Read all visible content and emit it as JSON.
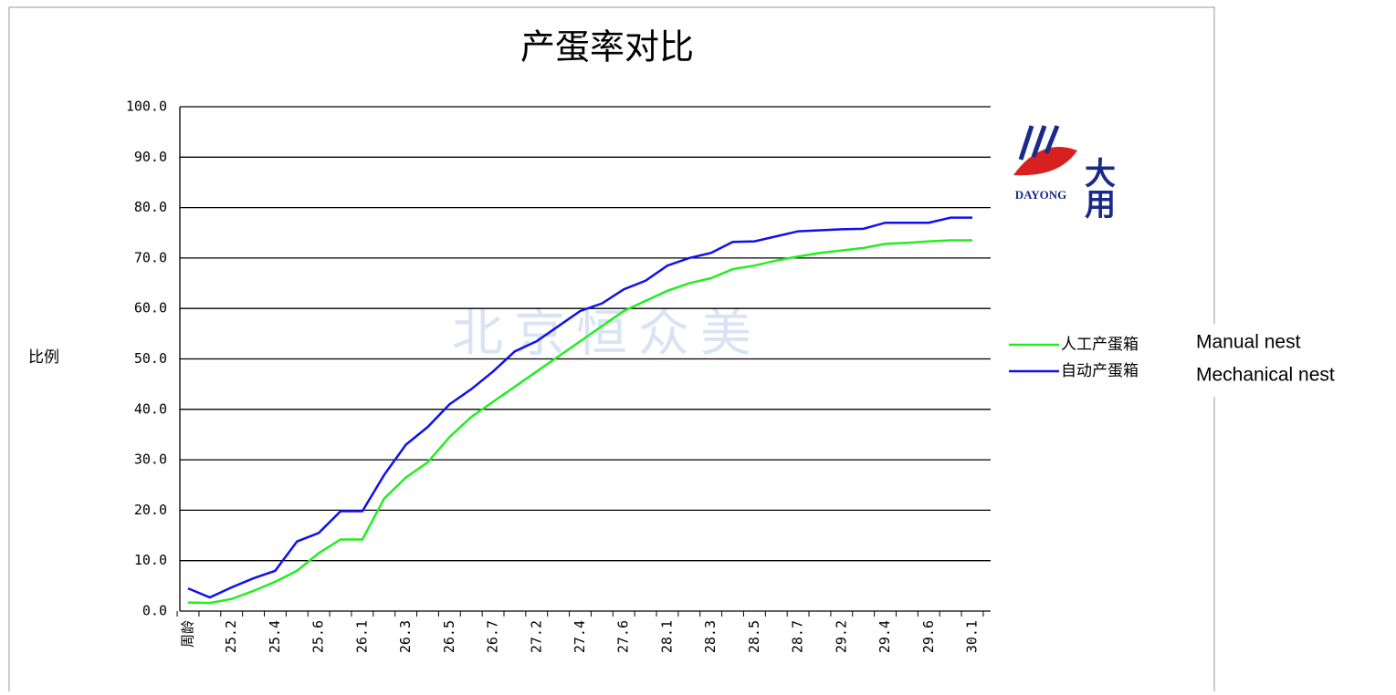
{
  "chart_data": {
    "type": "line",
    "title": "产蛋率对比",
    "y_label": "比例",
    "watermark": "北京恒众美",
    "categories": [
      "周龄",
      null,
      "25.2",
      null,
      "25.4",
      null,
      "25.6",
      null,
      "26.1",
      null,
      "26.3",
      null,
      "26.5",
      null,
      "26.7",
      null,
      "27.2",
      null,
      "27.4",
      null,
      "27.6",
      null,
      "28.1",
      null,
      "28.3",
      null,
      "28.5",
      null,
      "28.7",
      null,
      "29.2",
      null,
      "29.4",
      null,
      "29.6",
      null,
      "30.1"
    ],
    "series": [
      {
        "name": "人工产蛋箱",
        "color": "#22ee22",
        "values": [
          1.7,
          1.6,
          2.4,
          4,
          5.8,
          8,
          11.5,
          14.2,
          14.2,
          22.3,
          26.5,
          29.5,
          34.5,
          38.5,
          41.5,
          44.5,
          47.5,
          50.5,
          53.5,
          56.5,
          59.5,
          61.5,
          63.5,
          65,
          66,
          67.8,
          68.5,
          69.5,
          70.3,
          71,
          71.5,
          72,
          72.8,
          73,
          73.3,
          73.5,
          73.5
        ]
      },
      {
        "name": "自动产蛋箱",
        "color": "#1010ee",
        "values": [
          4.5,
          2.7,
          4.7,
          6.5,
          8,
          13.8,
          15.5,
          19.8,
          19.8,
          27,
          33,
          36.5,
          41,
          44,
          47.5,
          51.5,
          53.5,
          56.5,
          59.5,
          61,
          63.8,
          65.5,
          68.5,
          70,
          71,
          73.2,
          73.3,
          74.3,
          75.3,
          75.5,
          75.7,
          75.8,
          77,
          77,
          77,
          78,
          78
        ]
      }
    ],
    "ylim": [
      0,
      100
    ],
    "yticks": [
      {
        "value": 0,
        "label": "0.0"
      },
      {
        "value": 10,
        "label": "10.0"
      },
      {
        "value": 20,
        "label": "20.0"
      },
      {
        "value": 30,
        "label": "30.0"
      },
      {
        "value": 40,
        "label": "40.0"
      },
      {
        "value": 50,
        "label": "50.0"
      },
      {
        "value": 60,
        "label": "60.0"
      },
      {
        "value": 70,
        "label": "70.0"
      },
      {
        "value": 80,
        "label": "80.0"
      },
      {
        "value": 90,
        "label": "90.0"
      },
      {
        "value": 100,
        "label": "100.0"
      }
    ],
    "grid": true,
    "legend": "right",
    "annotations": [
      "Manual nest",
      "Mechanical nest"
    ]
  },
  "logo": {
    "text": "DAYONG",
    "mark": "大用"
  }
}
